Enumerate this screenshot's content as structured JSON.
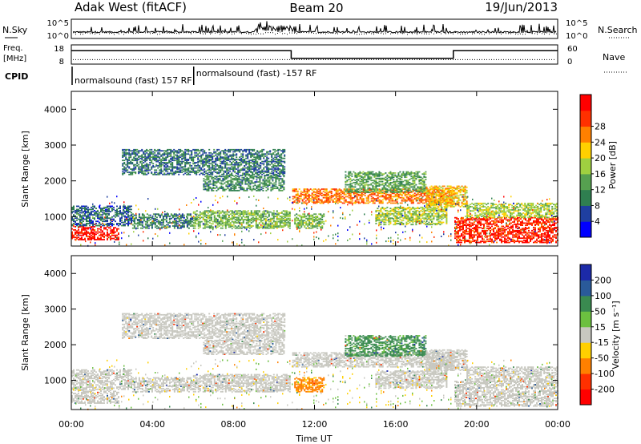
{
  "header": {
    "station": "Adak West (fitACF)",
    "beam": "Beam 20",
    "date": "19/Jun/2013"
  },
  "noise_panel": {
    "left_label": "N.Sky",
    "right_label": "N.Search",
    "left_ticks": [
      "10^5",
      "10^0"
    ],
    "right_ticks": [
      "10^5",
      "10^0"
    ]
  },
  "freq_panel": {
    "left_label_line1": "Freq.",
    "left_label_line2": "[MHz]",
    "right_label": "Nave",
    "left_ticks": [
      "18",
      "8"
    ],
    "right_ticks": [
      "60",
      "0"
    ],
    "freq_segments": [
      {
        "start_h": 0.0,
        "end_h": 10.85,
        "mhz": 15
      },
      {
        "start_h": 10.85,
        "end_h": 18.85,
        "mhz": 11
      },
      {
        "start_h": 18.85,
        "end_h": 24.0,
        "mhz": 15
      }
    ],
    "nave_level": 14
  },
  "cpid": {
    "label": "CPID",
    "segments": [
      {
        "start_h": 0.0,
        "text": "normalsound (fast) 157 RF"
      },
      {
        "start_h": 6.0,
        "text": "normalsound (fast) -157 RF"
      }
    ]
  },
  "x_axis": {
    "title": "Time UT",
    "ticks": [
      "00:00",
      "04:00",
      "08:00",
      "12:00",
      "16:00",
      "20:00",
      "00:00"
    ]
  },
  "power_panel": {
    "ylabel": "Slant Range [km]",
    "yticks": [
      "1000",
      "2000",
      "3000",
      "4000"
    ],
    "colorbar_label": "Power [dB]",
    "colorbar_ticks": [
      "4",
      "8",
      "12",
      "16",
      "20",
      "24",
      "28"
    ],
    "colors": [
      "#0000ff",
      "#1f3fa0",
      "#2f7f50",
      "#56a050",
      "#9fd040",
      "#ffd000",
      "#ff8000",
      "#ff3000",
      "#ff0000"
    ]
  },
  "velocity_panel": {
    "ylabel": "Slant Range [km]",
    "yticks": [
      "1000",
      "2000",
      "3000",
      "4000"
    ],
    "colorbar_label": "Velocity [m s⁻¹]",
    "colorbar_ticks": [
      "200",
      "100",
      "50",
      "15",
      "-15",
      "-50",
      "-100",
      "-200"
    ],
    "colors": [
      "#1c2aa8",
      "#2a5a9a",
      "#3a8a50",
      "#6cc040",
      "#c8c8c0",
      "#ffd000",
      "#ff8000",
      "#ff3000",
      "#ff0000"
    ]
  },
  "chart_data": {
    "type": "heatmap",
    "x_range_hours": [
      0,
      24
    ],
    "y_range_km": [
      180,
      4500
    ],
    "power_db_range": [
      0,
      32
    ],
    "velocity_range": [
      -250,
      250
    ],
    "scatter_bands": [
      {
        "start_h": 0.0,
        "end_h": 2.3,
        "r0_km": 380,
        "r1_km": 770,
        "power_db": 29,
        "velocity": 0
      },
      {
        "start_h": 0.0,
        "end_h": 3.0,
        "r0_km": 770,
        "r1_km": 1330,
        "power_db": 7,
        "velocity": 0
      },
      {
        "start_h": 2.5,
        "end_h": 10.5,
        "r0_km": 2200,
        "r1_km": 2900,
        "power_db": 8,
        "velocity": 0
      },
      {
        "start_h": 6.5,
        "end_h": 10.5,
        "r0_km": 1750,
        "r1_km": 2200,
        "power_db": 10,
        "velocity": 0
      },
      {
        "start_h": 6.0,
        "end_h": 10.8,
        "r0_km": 700,
        "r1_km": 1200,
        "power_db": 14,
        "velocity": 0
      },
      {
        "start_h": 10.9,
        "end_h": 18.8,
        "r0_km": 1400,
        "r1_km": 1800,
        "power_db": 24,
        "velocity": 0
      },
      {
        "start_h": 11.0,
        "end_h": 12.5,
        "r0_km": 700,
        "r1_km": 1100,
        "power_db": 14,
        "velocity": -60
      },
      {
        "start_h": 13.5,
        "end_h": 17.5,
        "r0_km": 1700,
        "r1_km": 2300,
        "power_db": 12,
        "velocity": 60
      },
      {
        "start_h": 15.0,
        "end_h": 18.5,
        "r0_km": 800,
        "r1_km": 1300,
        "power_db": 16,
        "velocity": 0
      },
      {
        "start_h": 17.5,
        "end_h": 19.5,
        "r0_km": 1300,
        "r1_km": 1900,
        "power_db": 20,
        "velocity": 0
      },
      {
        "start_h": 18.9,
        "end_h": 24.0,
        "r0_km": 300,
        "r1_km": 1000,
        "power_db": 28,
        "velocity": 0
      },
      {
        "start_h": 19.5,
        "end_h": 24.0,
        "r0_km": 1000,
        "r1_km": 1400,
        "power_db": 16,
        "velocity": 0
      },
      {
        "start_h": 3.0,
        "end_h": 6.0,
        "r0_km": 700,
        "r1_km": 1100,
        "power_db": 9,
        "velocity": 0
      }
    ]
  }
}
